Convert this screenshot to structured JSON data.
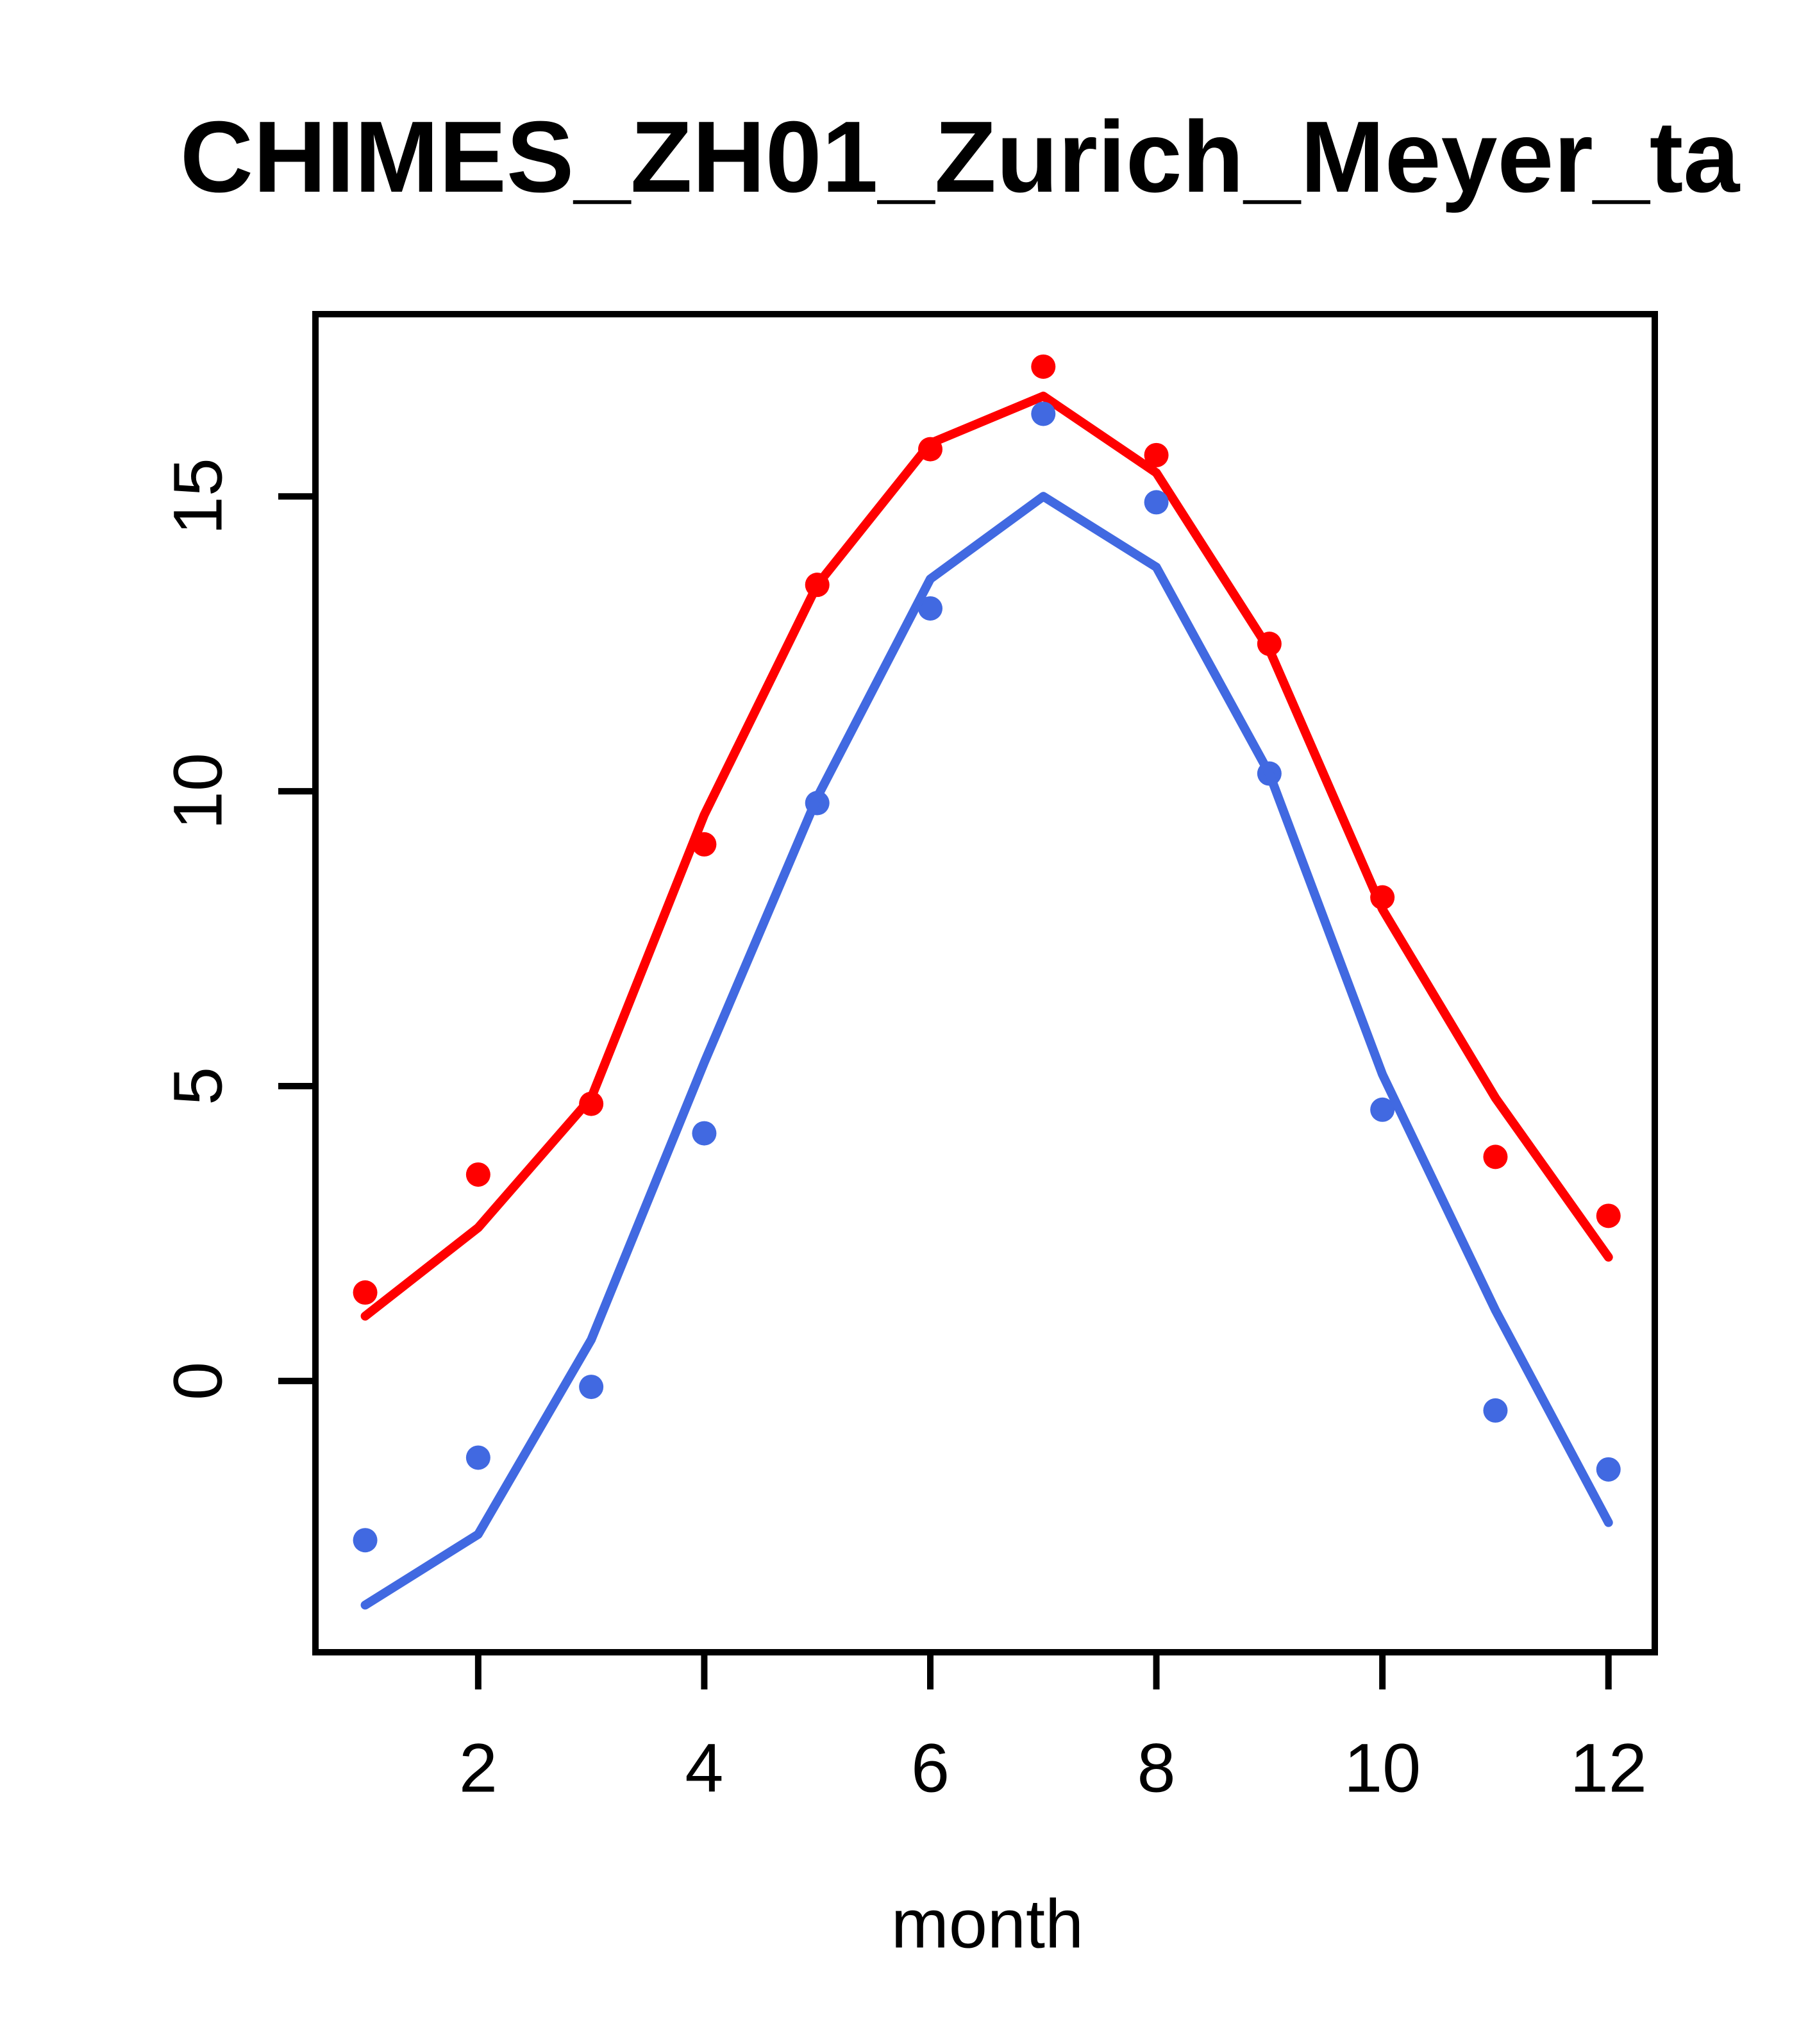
{
  "chart_data": {
    "type": "line",
    "title": "CHIMES_ZH01_Zurich_Meyer_ta",
    "xlabel": "month",
    "ylabel": "",
    "x": [
      1,
      2,
      3,
      4,
      5,
      6,
      7,
      8,
      9,
      10,
      11,
      12
    ],
    "series": [
      {
        "name": "red_points",
        "style": "points",
        "color": "#FF0000",
        "values": [
          1.5,
          3.5,
          4.7,
          9.1,
          13.5,
          15.8,
          17.2,
          15.7,
          12.5,
          8.2,
          3.8,
          2.8
        ]
      },
      {
        "name": "red_line",
        "style": "line",
        "color": "#FF0000",
        "values": [
          1.1,
          2.6,
          4.8,
          9.6,
          13.5,
          15.9,
          16.7,
          15.4,
          12.4,
          8.0,
          4.8,
          2.1
        ]
      },
      {
        "name": "blue_points",
        "style": "points",
        "color": "#4169E1",
        "values": [
          -2.7,
          -1.3,
          -0.1,
          4.2,
          9.8,
          13.1,
          16.4,
          14.9,
          10.3,
          4.6,
          -0.5,
          -1.5
        ]
      },
      {
        "name": "blue_line",
        "style": "line",
        "color": "#4169E1",
        "values": [
          -3.8,
          -2.6,
          0.7,
          5.4,
          9.9,
          13.6,
          15.0,
          13.8,
          10.3,
          5.2,
          1.2,
          -2.4
        ]
      }
    ],
    "x_ticks": [
      2,
      4,
      6,
      8,
      10,
      12
    ],
    "y_ticks": [
      0,
      5,
      10,
      15
    ],
    "xlim": [
      0.56,
      12.41
    ],
    "ylim": [
      -4.6,
      18.09
    ],
    "grid": false,
    "legend": null,
    "axis_color": "#000000"
  }
}
